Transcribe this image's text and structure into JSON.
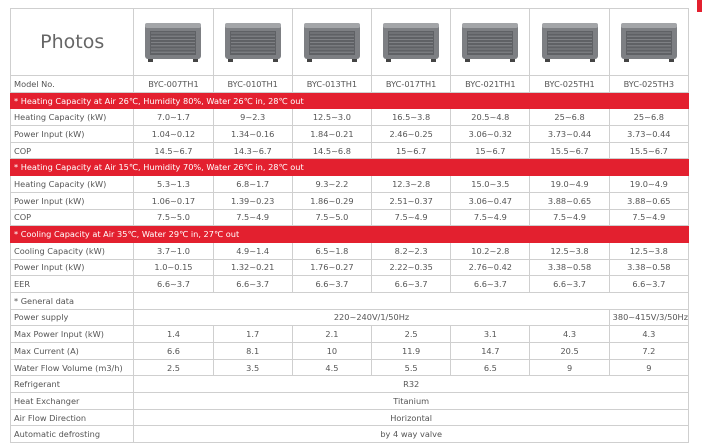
{
  "photos_label": "Photos",
  "model_label": "Model No.",
  "models": [
    "BYC-007TH1",
    "BYC-010TH1",
    "BYC-013TH1",
    "BYC-017TH1",
    "BYC-021TH1",
    "BYC-025TH1",
    "BYC-025TH3"
  ],
  "rows": [
    {
      "section": "* Heating Capacity at Air 26℃, Humidity 80%, Water 26℃ in, 28℃ out"
    },
    {
      "label": "Heating Capacity (kW)",
      "cells": [
        "7.0~1.7",
        "9~2.3",
        "12.5~3.0",
        "16.5~3.8",
        "20.5~4.8",
        "25~6.8",
        "25~6.8"
      ]
    },
    {
      "label": "Power Input (kW)",
      "cells": [
        "1.04~0.12",
        "1.34~0.16",
        "1.84~0.21",
        "2.46~0.25",
        "3.06~0.32",
        "3.73~0.44",
        "3.73~0.44"
      ]
    },
    {
      "label": "COP",
      "cells": [
        "14.5~6.7",
        "14.3~6.7",
        "14.5~6.8",
        "15~6.7",
        "15~6.7",
        "15.5~6.7",
        "15.5~6.7"
      ]
    },
    {
      "section": "* Heating Capacity at Air 15℃, Humidity 70%, Water 26℃ in, 28℃ out"
    },
    {
      "label": "Heating Capacity (kW)",
      "cells": [
        "5.3~1.3",
        "6.8~1.7",
        "9.3~2.2",
        "12.3~2.8",
        "15.0~3.5",
        "19.0~4.9",
        "19.0~4.9"
      ]
    },
    {
      "label": "Power Input (kW)",
      "cells": [
        "1.06~0.17",
        "1.39~0.23",
        "1.86~0.29",
        "2.51~0.37",
        "3.06~0.47",
        "3.88~0.65",
        "3.88~0.65"
      ]
    },
    {
      "label": "COP",
      "cells": [
        "7.5~5.0",
        "7.5~4.9",
        "7.5~5.0",
        "7.5~4.9",
        "7.5~4.9",
        "7.5~4.9",
        "7.5~4.9"
      ]
    },
    {
      "section": "* Cooling Capacity at Air 35℃,  Water 29℃ in, 27℃ out"
    },
    {
      "label": "Cooling Capacity (kW)",
      "cells": [
        "3.7~1.0",
        "4.9~1.4",
        "6.5~1.8",
        "8.2~2.3",
        "10.2~2.8",
        "12.5~3.8",
        "12.5~3.8"
      ]
    },
    {
      "label": "Power Input (kW)",
      "cells": [
        "1.0~0.15",
        "1.32~0.21",
        "1.76~0.27",
        "2.22~0.35",
        "2.76~0.42",
        "3.38~0.58",
        "3.38~0.58"
      ]
    },
    {
      "label": "EER",
      "cells": [
        "6.6~3.7",
        "6.6~3.7",
        "6.6~3.7",
        "6.6~3.7",
        "6.6~3.7",
        "6.6~3.7",
        "6.6~3.7"
      ]
    },
    {
      "note": "* General data"
    },
    {
      "label": "Power supply",
      "cells": [
        "220~240V/1/50Hz",
        "380~415V/3/50Hz"
      ]
    },
    {
      "label": "Max Power Input (kW)",
      "cells": [
        "1.4",
        "1.7",
        "2.1",
        "2.5",
        "3.1",
        "4.3",
        "4.3"
      ]
    },
    {
      "label": "Max Current (A)",
      "cells": [
        "6.6",
        "8.1",
        "10",
        "11.9",
        "14.7",
        "20.5",
        "7.2"
      ]
    },
    {
      "label": "Water Flow Volume (m3/h)",
      "cells": [
        "2.5",
        "3.5",
        "4.5",
        "5.5",
        "6.5",
        "9",
        "9"
      ]
    },
    {
      "label": "Refrigerant",
      "cells": [
        "R32"
      ]
    },
    {
      "label": "Heat Exchanger",
      "cells": [
        "Titanium"
      ]
    },
    {
      "label": "Air Flow Direction",
      "cells": [
        "Horizontal"
      ]
    },
    {
      "label": "Automatic defrosting",
      "cells": [
        "by 4 way valve"
      ]
    }
  ]
}
